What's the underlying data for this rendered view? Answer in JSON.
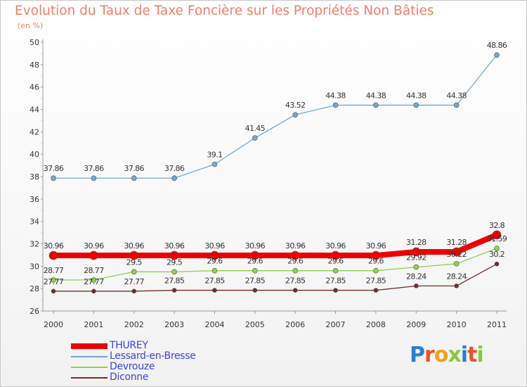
{
  "title": "Evolution du Taux de Taxe Foncière sur les Propriétés Non Bâties",
  "unit": "(en %)",
  "logo": {
    "text": "Proxiti",
    "colors": [
      "#2b7fd4",
      "#e8552a",
      "#f0a020",
      "#8cc63f",
      "#2b7fd4",
      "#e8552a",
      "#8cc63f"
    ]
  },
  "chart_data": {
    "type": "line",
    "title": "Evolution du Taux de Taxe Foncière sur les Propriétés Non Bâties",
    "ylabel": "(en %)",
    "x": [
      "2000",
      "2001",
      "2002",
      "2003",
      "2004",
      "2005",
      "2006",
      "2007",
      "2008",
      "2009",
      "2010",
      "2011"
    ],
    "ylim": [
      26,
      50
    ],
    "yticks": [
      26,
      28,
      30,
      32,
      34,
      36,
      38,
      40,
      42,
      44,
      46,
      48,
      50
    ],
    "grid": false,
    "legend": "bottom-left",
    "series": [
      {
        "name": "THUREY",
        "color": "#ee0000",
        "values": [
          30.96,
          30.96,
          30.96,
          30.96,
          30.96,
          30.96,
          30.96,
          30.96,
          30.96,
          31.28,
          31.28,
          32.8
        ],
        "labels": [
          "30.96",
          "30.96",
          "30.96",
          "30.96",
          "30.96",
          "30.96",
          "30.96",
          "30.96",
          "30.96",
          "31.28",
          "31.28",
          "32.8"
        ]
      },
      {
        "name": "Lessard-en-Bresse",
        "color": "#6fa8d6",
        "values": [
          37.86,
          37.86,
          37.86,
          37.86,
          39.1,
          41.45,
          43.52,
          44.38,
          44.38,
          44.38,
          44.38,
          48.86
        ],
        "labels": [
          "37.86",
          "37.86",
          "37.86",
          "37.86",
          "39.1",
          "41.45",
          "43.52",
          "44.38",
          "44.38",
          "44.38",
          "44.38",
          "48.86"
        ]
      },
      {
        "name": "Devrouze",
        "color": "#8fd14f",
        "values": [
          28.77,
          28.77,
          29.5,
          29.5,
          29.6,
          29.6,
          29.6,
          29.6,
          29.6,
          29.92,
          30.22,
          31.59
        ],
        "labels": [
          "28.77",
          "28.77",
          "29.5",
          "29.5",
          "29.6",
          "29.6",
          "29.6",
          "29.6",
          "29.6",
          "29.92",
          "30.22",
          "31.59"
        ]
      },
      {
        "name": "Diconne",
        "color": "#7a2a2a",
        "values": [
          27.77,
          27.77,
          27.77,
          27.85,
          27.85,
          27.85,
          27.85,
          27.85,
          27.85,
          28.24,
          28.24,
          30.2
        ],
        "labels": [
          "27.77",
          "27.77",
          "27.77",
          "27.85",
          "27.85",
          "27.85",
          "27.85",
          "27.85",
          "27.85",
          "28.24",
          "28.24",
          "30.2"
        ]
      }
    ]
  }
}
